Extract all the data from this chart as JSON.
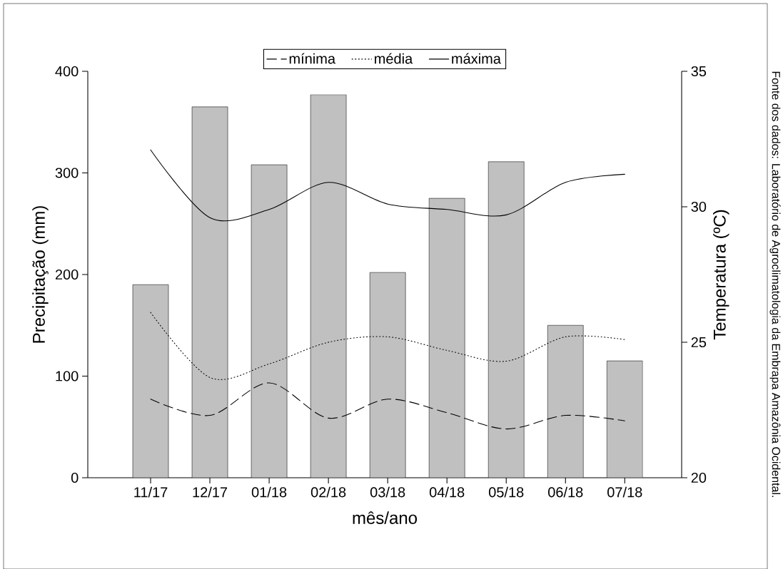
{
  "chart_data": {
    "type": "bar",
    "categories": [
      "11/17",
      "12/17",
      "01/18",
      "02/18",
      "03/18",
      "04/18",
      "05/18",
      "06/18",
      "07/18"
    ],
    "series": [
      {
        "color": "#c0c0c0",
        "values": [
          190,
          365,
          308,
          377,
          202,
          275,
          311,
          150,
          115
        ]
      },
      {
        "name": "mínima",
        "type": "line",
        "axis": "y2",
        "color": "#000000",
        "line_style": "dashed",
        "values": [
          22.9,
          22.3,
          23.5,
          22.2,
          22.9,
          22.4,
          21.8,
          22.3,
          22.1
        ]
      },
      {
        "name": "média",
        "type": "line",
        "axis": "y2",
        "color": "#000000",
        "line_style": "dotted",
        "values": [
          26.1,
          23.7,
          24.2,
          25.0,
          25.2,
          24.7,
          24.3,
          25.2,
          25.1
        ]
      },
      {
        "name": "máxima",
        "type": "line",
        "axis": "y2",
        "color": "#000000",
        "line_style": "solid",
        "values": [
          32.1,
          29.6,
          29.9,
          30.9,
          30.1,
          29.9,
          29.7,
          30.9,
          31.2
        ]
      }
    ],
    "xlabel": "mês/ano",
    "ylabel": "Precipitação (mm)",
    "y2label": "Temperatura (ºC)",
    "ylim": [
      0,
      400
    ],
    "yticks": [
      0,
      100,
      200,
      300,
      400
    ],
    "y2lim": [
      20,
      35
    ],
    "y2ticks": [
      20,
      25,
      30,
      35
    ],
    "grid": false,
    "legend": "top",
    "annotations": [
      "Fonte dos dados: Laboratório de Agroclimatologia da Embrapa Amazônia Ocidental."
    ]
  }
}
